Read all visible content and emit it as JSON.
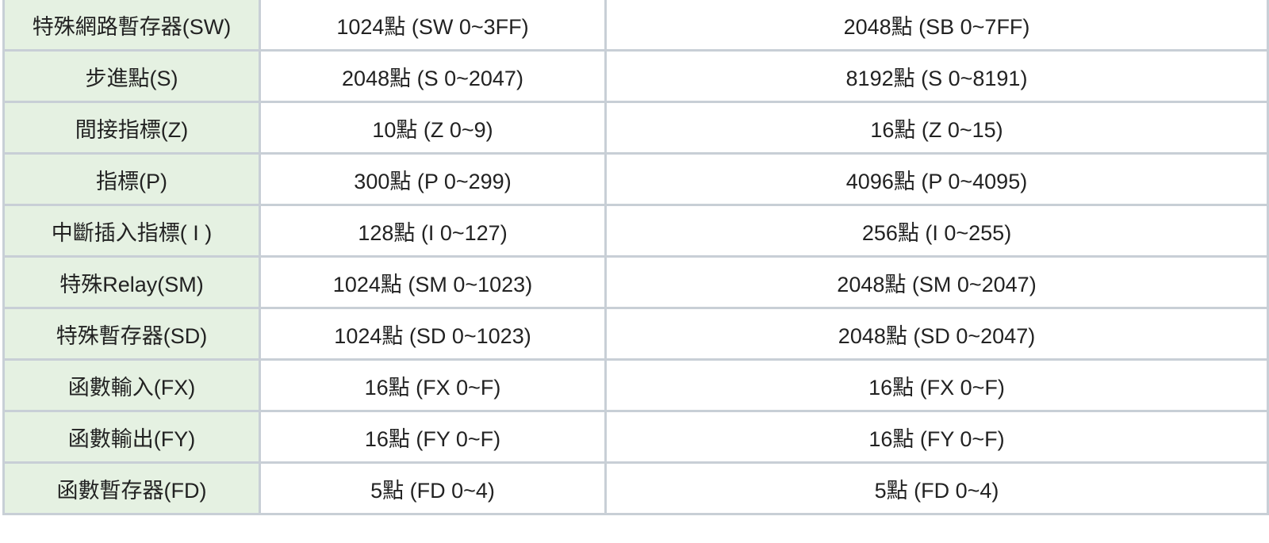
{
  "table": {
    "rows": [
      [
        "特殊網路暫存器(SW)",
        "1024點 (SW 0~3FF)",
        "2048點 (SB 0~7FF)"
      ],
      [
        "步進點(S)",
        "2048點 (S 0~2047)",
        "8192點 (S 0~8191)"
      ],
      [
        "間接指標(Z)",
        "10點 (Z 0~9)",
        "16點 (Z 0~15)"
      ],
      [
        "指標(P)",
        "300點 (P 0~299)",
        "4096點 (P 0~4095)"
      ],
      [
        "中斷插入指標( I )",
        "128點 (I 0~127)",
        "256點 (I 0~255)"
      ],
      [
        "特殊Relay(SM)",
        "1024點 (SM 0~1023)",
        "2048點 (SM 0~2047)"
      ],
      [
        "特殊暫存器(SD)",
        "1024點 (SD 0~1023)",
        "2048點 (SD 0~2047)"
      ],
      [
        "函數輸入(FX)",
        "16點 (FX 0~F)",
        "16點 (FX 0~F)"
      ],
      [
        "函數輸出(FY)",
        "16點 (FY 0~F)",
        "16點 (FY 0~F)"
      ],
      [
        "函數暫存器(FD)",
        "5點 (FD 0~4)",
        "5點 (FD 0~4)"
      ]
    ]
  }
}
